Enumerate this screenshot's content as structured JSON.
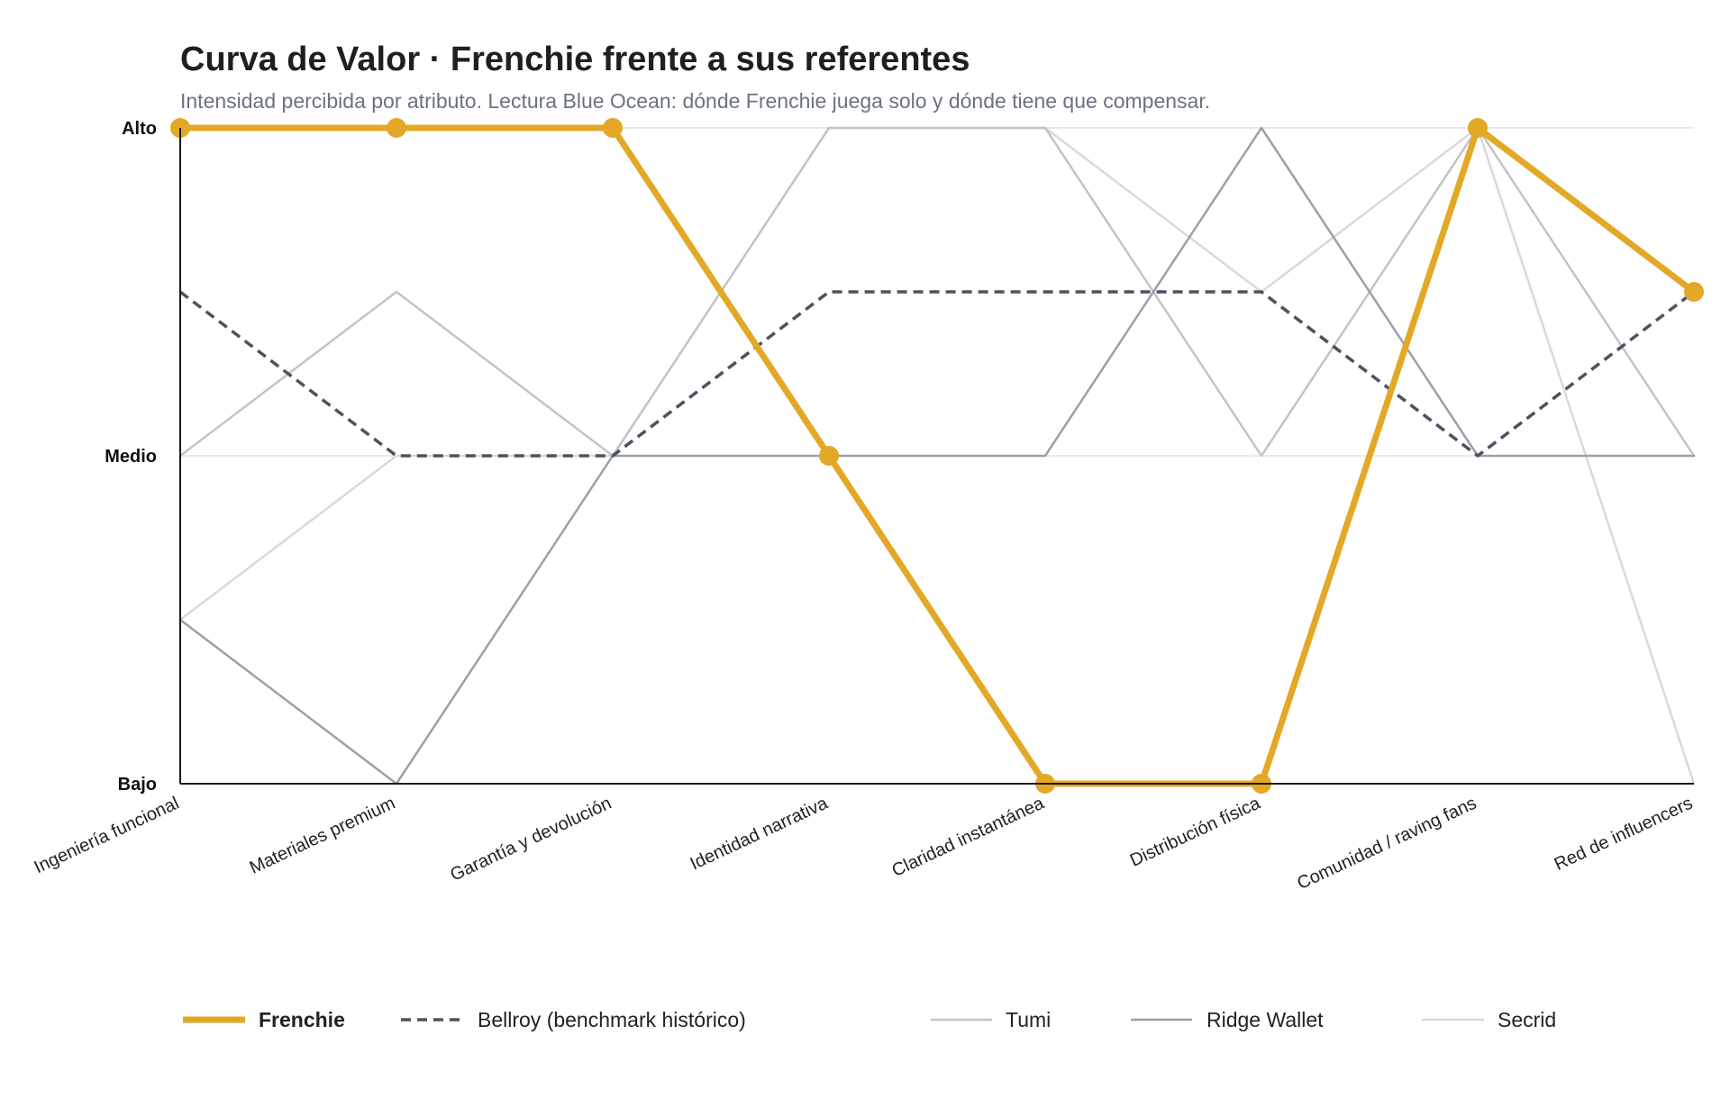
{
  "chart_data": {
    "type": "line",
    "title": "Curva de Valor · Frenchie frente a sus referentes",
    "subtitle": "Intensidad percibida por atributo. Lectura Blue Ocean: dónde Frenchie juega solo y dónde tiene que compensar.",
    "categories": [
      "Ingeniería funcional",
      "Materiales premium",
      "Garantía y devolución",
      "Identidad narrativa",
      "Claridad instantánea",
      "Distribución física",
      "Comunidad / raving fans",
      "Red de influencers"
    ],
    "y_ticks": [
      {
        "value": 0,
        "label": "Bajo"
      },
      {
        "value": 2,
        "label": "Medio"
      },
      {
        "value": 4,
        "label": "Alto"
      }
    ],
    "ylim": [
      0,
      4
    ],
    "grid": true,
    "legend_position": "bottom",
    "series": [
      {
        "name": "Secrid",
        "color": "#d9d9d9",
        "style": "solid",
        "values": [
          1,
          2,
          2,
          4,
          4,
          3,
          4,
          0
        ]
      },
      {
        "name": "Tumi",
        "color": "#c4c4c4",
        "style": "solid",
        "values": [
          2,
          3,
          2,
          4,
          4,
          2,
          4,
          2
        ]
      },
      {
        "name": "Ridge Wallet",
        "color": "#9aa1ab",
        "style": "solid",
        "values": [
          1,
          0,
          2,
          2,
          2,
          4,
          2,
          2
        ]
      },
      {
        "name": "Bellroy (benchmark histórico)",
        "color": "#4b5260",
        "style": "dashed",
        "values": [
          3,
          2,
          2,
          3,
          3,
          3,
          2,
          3
        ]
      },
      {
        "name": "Frenchie",
        "color": "#e3a826",
        "style": "bold",
        "values": [
          4,
          4,
          4,
          2,
          0,
          0,
          4,
          3
        ]
      }
    ],
    "legend_order": [
      "Frenchie",
      "Bellroy (benchmark histórico)",
      "Tumi",
      "Ridge Wallet",
      "Secrid"
    ]
  }
}
